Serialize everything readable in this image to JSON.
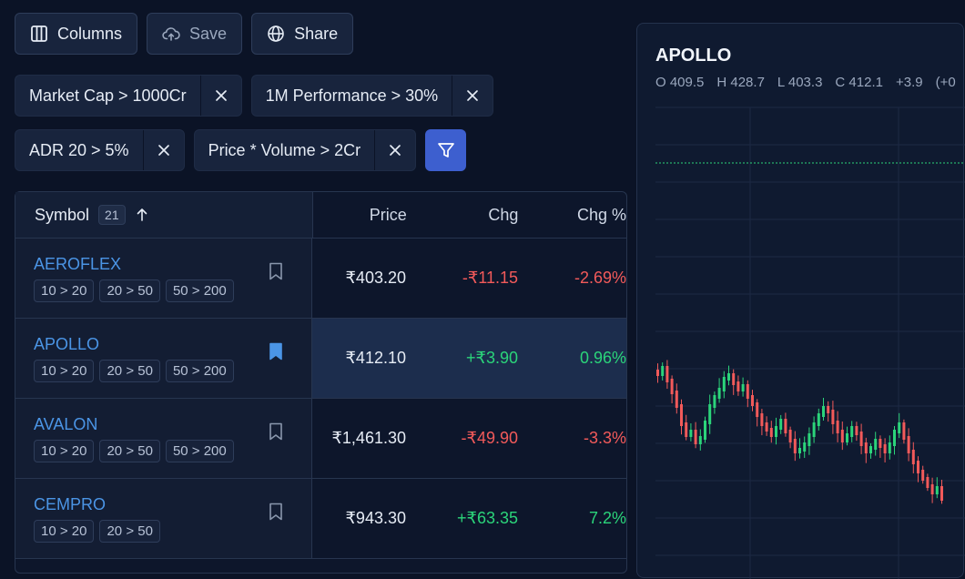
{
  "toolbar": {
    "columns_label": "Columns",
    "save_label": "Save",
    "share_label": "Share"
  },
  "filters": [
    {
      "label": "Market Cap > 1000Cr"
    },
    {
      "label": "1M Performance > 30%"
    },
    {
      "label": "ADR 20 > 5%"
    },
    {
      "label": "Price * Volume > 2Cr"
    }
  ],
  "table": {
    "headers": {
      "symbol": "Symbol",
      "count": "21",
      "price": "Price",
      "chg": "Chg",
      "chg_pct": "Chg %"
    },
    "rows": [
      {
        "symbol": "AEROFLEX",
        "tags": [
          "10 > 20",
          "20 > 50",
          "50 > 200"
        ],
        "price": "₹403.20",
        "chg": "-₹11.15",
        "chg_pct": "-2.69%",
        "bookmarked": false,
        "direction": "down"
      },
      {
        "symbol": "APOLLO",
        "tags": [
          "10 > 20",
          "20 > 50",
          "50 > 200"
        ],
        "price": "₹412.10",
        "chg": "+₹3.90",
        "chg_pct": "0.96%",
        "bookmarked": true,
        "direction": "up"
      },
      {
        "symbol": "AVALON",
        "tags": [
          "10 > 20",
          "20 > 50",
          "50 > 200"
        ],
        "price": "₹1,461.30",
        "chg": "-₹49.90",
        "chg_pct": "-3.3%",
        "bookmarked": false,
        "direction": "down"
      },
      {
        "symbol": "CEMPRO",
        "tags": [
          "10 > 20",
          "20 > 50"
        ],
        "price": "₹943.30",
        "chg": "+₹63.35",
        "chg_pct": "7.2%",
        "bookmarked": false,
        "direction": "up"
      }
    ]
  },
  "chart": {
    "title": "APOLLO",
    "open": "O 409.5",
    "high": "H 428.7",
    "low": "L 403.3",
    "close": "C 412.1",
    "change": "+3.9",
    "change_pct_partial": "(+0",
    "up_color": "#2bd47a",
    "down_color": "#f25a5a",
    "accent": "#3d5fcf"
  }
}
